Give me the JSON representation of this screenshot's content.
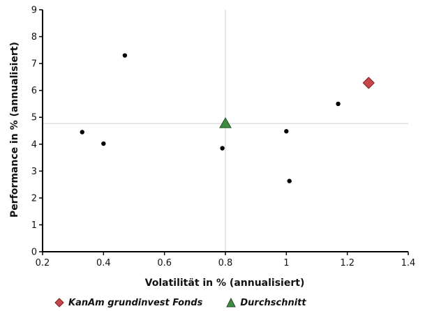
{
  "chart_data": {
    "type": "scatter",
    "xlabel": "Volatilität in % (annualisiert)",
    "ylabel": "Performance in % (annualisiert)",
    "xlim": [
      0.2,
      1.4
    ],
    "ylim": [
      0,
      9
    ],
    "x_ticks": [
      "0.2",
      "0.4",
      "0.6",
      "0.8",
      "1",
      "1.2",
      "1.4"
    ],
    "y_ticks": [
      "0",
      "1",
      "2",
      "3",
      "4",
      "5",
      "6",
      "7",
      "8",
      "9"
    ],
    "reference_lines": {
      "x": 0.8,
      "y": 4.77
    },
    "series": [
      {
        "name": "",
        "marker": "dot",
        "color": "#000000",
        "points": [
          {
            "x": 0.33,
            "y": 4.45
          },
          {
            "x": 0.4,
            "y": 4.02
          },
          {
            "x": 0.47,
            "y": 7.3
          },
          {
            "x": 0.79,
            "y": 3.85
          },
          {
            "x": 1.0,
            "y": 4.48
          },
          {
            "x": 1.01,
            "y": 2.63
          },
          {
            "x": 1.17,
            "y": 5.5
          }
        ]
      },
      {
        "name": "KanAm grundinvest Fonds",
        "marker": "diamond",
        "color": "#c8464b",
        "points": [
          {
            "x": 1.27,
            "y": 6.28
          }
        ]
      },
      {
        "name": "Durchschnitt",
        "marker": "triangle",
        "color": "#3d8c40",
        "points": [
          {
            "x": 0.8,
            "y": 4.77
          }
        ]
      }
    ]
  },
  "legend": {
    "fund_label": "KanAm grundinvest Fonds",
    "average_label": "Durchschnitt"
  }
}
